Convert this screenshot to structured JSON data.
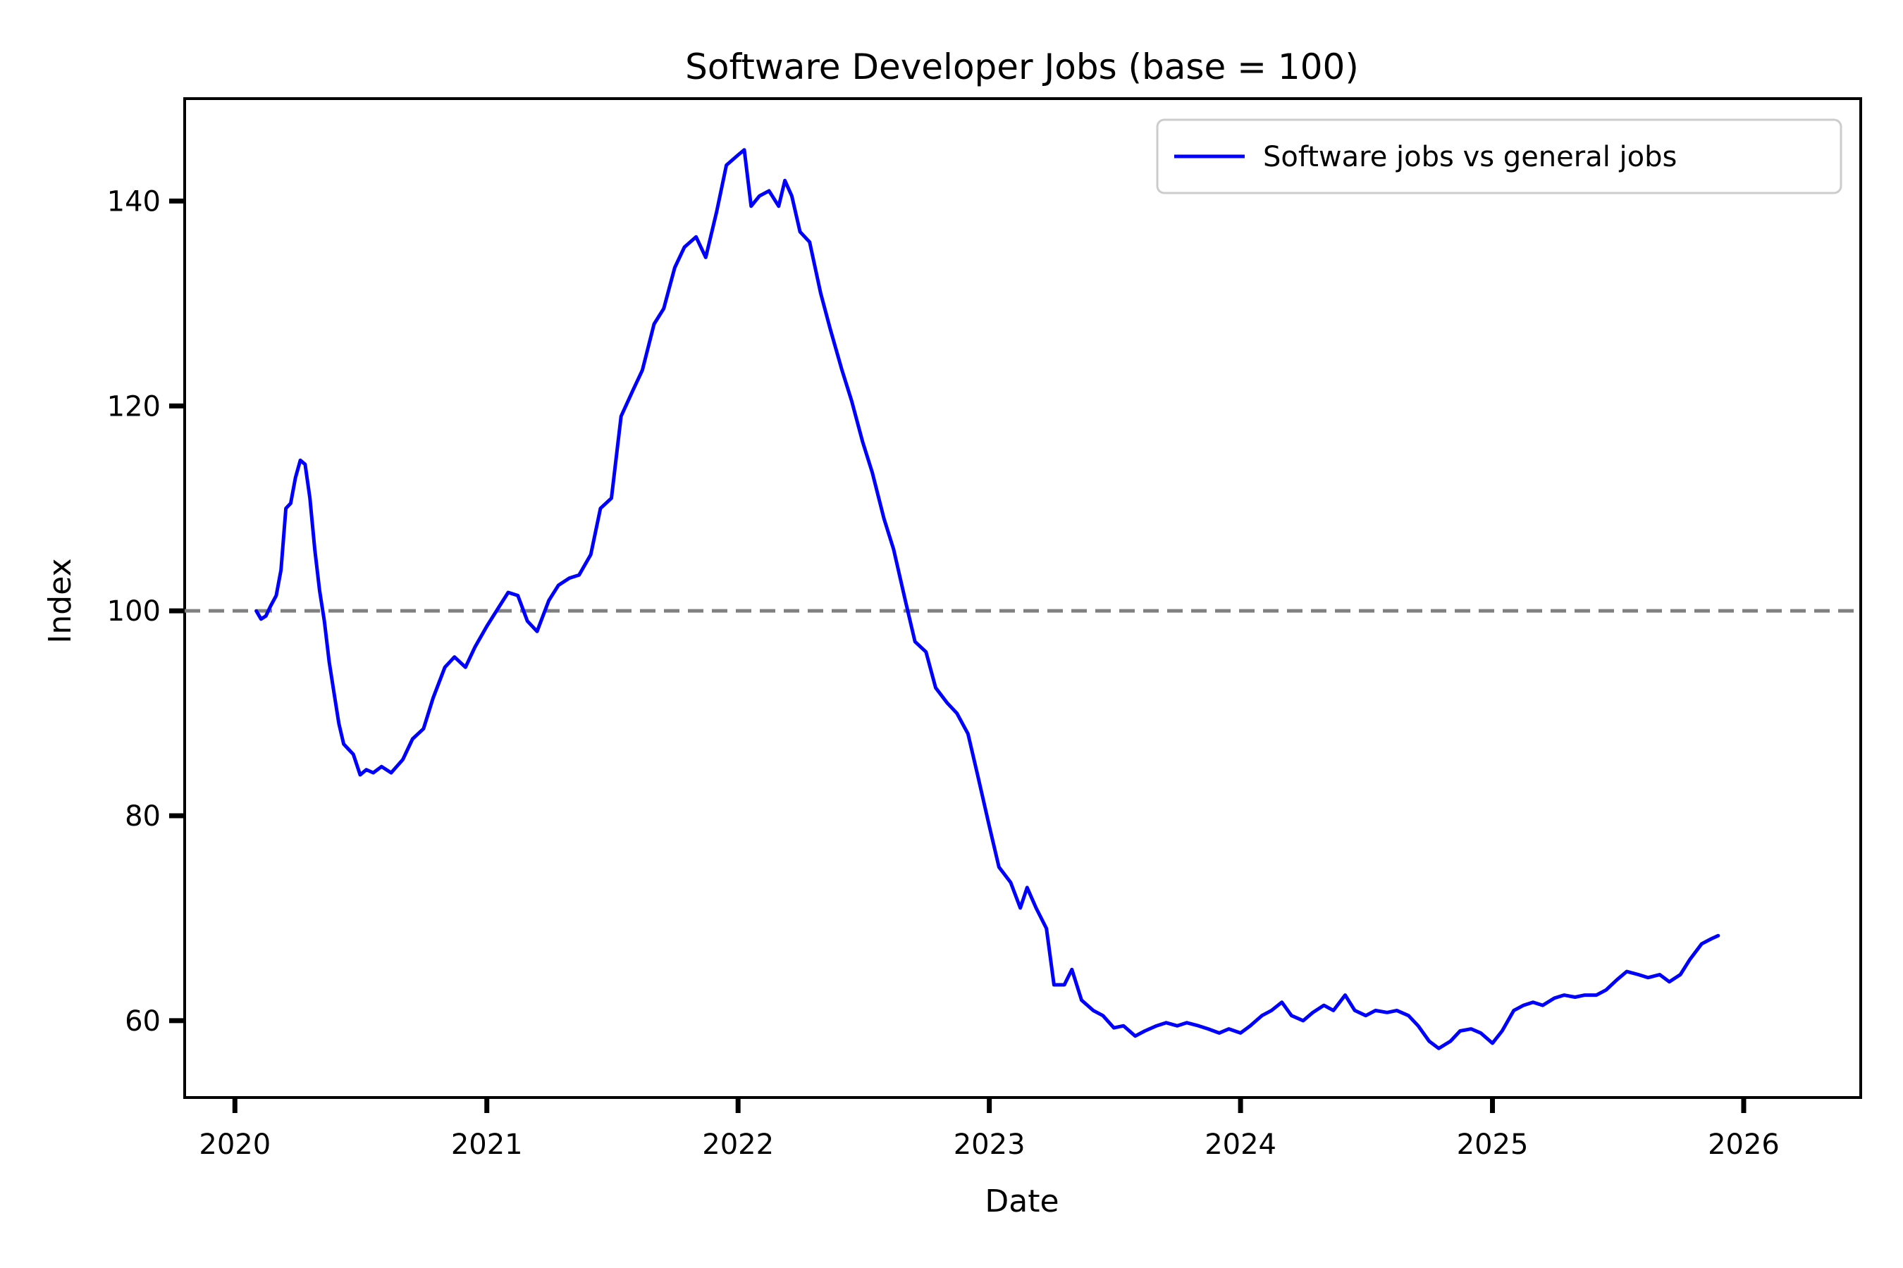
{
  "chart_data": {
    "type": "line",
    "title": "Software Developer Jobs (base = 100)",
    "xlabel": "Date",
    "ylabel": "Index",
    "xlim": [
      "2019-10-20",
      "2026-06-20"
    ],
    "ylim": [
      52.5,
      150
    ],
    "x_ticks": [
      {
        "date": "2020-01-01",
        "label": "2020"
      },
      {
        "date": "2021-01-01",
        "label": "2021"
      },
      {
        "date": "2022-01-01",
        "label": "2022"
      },
      {
        "date": "2023-01-01",
        "label": "2023"
      },
      {
        "date": "2024-01-01",
        "label": "2024"
      },
      {
        "date": "2025-01-01",
        "label": "2025"
      },
      {
        "date": "2026-01-01",
        "label": "2026"
      }
    ],
    "y_ticks": [
      60,
      80,
      100,
      120,
      140
    ],
    "grid": false,
    "legend": {
      "position": "top-right",
      "entries": [
        "Software jobs vs general jobs"
      ]
    },
    "reference_line": {
      "y": 100,
      "style": "dashed",
      "color": "#808080"
    },
    "series": [
      {
        "name": "Software jobs vs general jobs",
        "color": "#0000ff",
        "points": [
          [
            "2020-02-01",
            100.0
          ],
          [
            "2020-02-08",
            99.2
          ],
          [
            "2020-02-15",
            99.5
          ],
          [
            "2020-02-22",
            100.5
          ],
          [
            "2020-03-01",
            101.5
          ],
          [
            "2020-03-08",
            104.0
          ],
          [
            "2020-03-15",
            110.0
          ],
          [
            "2020-03-22",
            110.5
          ],
          [
            "2020-03-29",
            113.0
          ],
          [
            "2020-04-05",
            114.7
          ],
          [
            "2020-04-12",
            114.3
          ],
          [
            "2020-04-19",
            111.0
          ],
          [
            "2020-04-26",
            106.0
          ],
          [
            "2020-05-03",
            102.0
          ],
          [
            "2020-05-10",
            99.0
          ],
          [
            "2020-05-17",
            95.0
          ],
          [
            "2020-05-24",
            92.0
          ],
          [
            "2020-05-31",
            89.0
          ],
          [
            "2020-06-07",
            87.0
          ],
          [
            "2020-06-14",
            86.5
          ],
          [
            "2020-06-21",
            86.0
          ],
          [
            "2020-07-01",
            84.0
          ],
          [
            "2020-07-10",
            84.5
          ],
          [
            "2020-07-20",
            84.2
          ],
          [
            "2020-08-01",
            84.8
          ],
          [
            "2020-08-15",
            84.2
          ],
          [
            "2020-09-01",
            85.5
          ],
          [
            "2020-09-15",
            87.5
          ],
          [
            "2020-10-01",
            88.5
          ],
          [
            "2020-10-15",
            91.5
          ],
          [
            "2020-11-01",
            94.5
          ],
          [
            "2020-11-15",
            95.5
          ],
          [
            "2020-12-01",
            94.5
          ],
          [
            "2020-12-15",
            96.5
          ],
          [
            "2021-01-01",
            98.5
          ],
          [
            "2021-01-15",
            100.0
          ],
          [
            "2021-02-01",
            101.8
          ],
          [
            "2021-02-15",
            101.5
          ],
          [
            "2021-03-01",
            99.0
          ],
          [
            "2021-03-15",
            98.0
          ],
          [
            "2021-04-01",
            101.0
          ],
          [
            "2021-04-15",
            102.5
          ],
          [
            "2021-05-01",
            103.2
          ],
          [
            "2021-05-15",
            103.5
          ],
          [
            "2021-06-01",
            105.5
          ],
          [
            "2021-06-15",
            110.0
          ],
          [
            "2021-07-01",
            111.0
          ],
          [
            "2021-07-15",
            119.0
          ],
          [
            "2021-08-01",
            121.5
          ],
          [
            "2021-08-15",
            123.5
          ],
          [
            "2021-09-01",
            128.0
          ],
          [
            "2021-09-15",
            129.5
          ],
          [
            "2021-10-01",
            133.5
          ],
          [
            "2021-10-15",
            135.5
          ],
          [
            "2021-11-01",
            136.5
          ],
          [
            "2021-11-15",
            134.5
          ],
          [
            "2021-12-01",
            139.0
          ],
          [
            "2021-12-15",
            143.5
          ],
          [
            "2022-01-01",
            144.5
          ],
          [
            "2022-01-10",
            145.0
          ],
          [
            "2022-01-20",
            139.5
          ],
          [
            "2022-02-01",
            140.5
          ],
          [
            "2022-02-15",
            141.0
          ],
          [
            "2022-03-01",
            139.5
          ],
          [
            "2022-03-10",
            142.0
          ],
          [
            "2022-03-20",
            140.5
          ],
          [
            "2022-04-01",
            137.0
          ],
          [
            "2022-04-15",
            136.0
          ],
          [
            "2022-05-01",
            131.0
          ],
          [
            "2022-05-15",
            127.5
          ],
          [
            "2022-06-01",
            123.5
          ],
          [
            "2022-06-15",
            120.5
          ],
          [
            "2022-07-01",
            116.5
          ],
          [
            "2022-07-15",
            113.5
          ],
          [
            "2022-08-01",
            109.0
          ],
          [
            "2022-08-15",
            106.0
          ],
          [
            "2022-09-01",
            101.0
          ],
          [
            "2022-09-15",
            97.0
          ],
          [
            "2022-10-01",
            96.0
          ],
          [
            "2022-10-15",
            92.5
          ],
          [
            "2022-11-01",
            91.0
          ],
          [
            "2022-11-15",
            90.0
          ],
          [
            "2022-12-01",
            88.0
          ],
          [
            "2022-12-15",
            84.0
          ],
          [
            "2023-01-01",
            79.0
          ],
          [
            "2023-01-15",
            75.0
          ],
          [
            "2023-02-01",
            73.5
          ],
          [
            "2023-02-15",
            71.0
          ],
          [
            "2023-02-25",
            73.0
          ],
          [
            "2023-03-10",
            71.0
          ],
          [
            "2023-03-25",
            69.0
          ],
          [
            "2023-04-05",
            63.5
          ],
          [
            "2023-04-20",
            63.5
          ],
          [
            "2023-05-01",
            65.0
          ],
          [
            "2023-05-15",
            62.0
          ],
          [
            "2023-06-01",
            61.0
          ],
          [
            "2023-06-15",
            60.5
          ],
          [
            "2023-07-01",
            59.3
          ],
          [
            "2023-07-15",
            59.5
          ],
          [
            "2023-08-01",
            58.5
          ],
          [
            "2023-08-15",
            59.0
          ],
          [
            "2023-09-01",
            59.5
          ],
          [
            "2023-09-15",
            59.8
          ],
          [
            "2023-10-01",
            59.5
          ],
          [
            "2023-10-15",
            59.8
          ],
          [
            "2023-11-01",
            59.5
          ],
          [
            "2023-11-15",
            59.2
          ],
          [
            "2023-12-01",
            58.8
          ],
          [
            "2023-12-15",
            59.2
          ],
          [
            "2024-01-01",
            58.8
          ],
          [
            "2024-01-15",
            59.5
          ],
          [
            "2024-02-01",
            60.5
          ],
          [
            "2024-02-15",
            61.0
          ],
          [
            "2024-03-01",
            61.8
          ],
          [
            "2024-03-15",
            60.5
          ],
          [
            "2024-04-01",
            60.0
          ],
          [
            "2024-04-15",
            60.8
          ],
          [
            "2024-05-01",
            61.5
          ],
          [
            "2024-05-15",
            61.0
          ],
          [
            "2024-06-01",
            62.5
          ],
          [
            "2024-06-15",
            61.0
          ],
          [
            "2024-07-01",
            60.5
          ],
          [
            "2024-07-15",
            61.0
          ],
          [
            "2024-08-01",
            60.8
          ],
          [
            "2024-08-15",
            61.0
          ],
          [
            "2024-09-01",
            60.5
          ],
          [
            "2024-09-15",
            59.5
          ],
          [
            "2024-10-01",
            58.0
          ],
          [
            "2024-10-15",
            57.3
          ],
          [
            "2024-11-01",
            58.0
          ],
          [
            "2024-11-15",
            59.0
          ],
          [
            "2024-12-01",
            59.2
          ],
          [
            "2024-12-15",
            58.8
          ],
          [
            "2025-01-01",
            57.8
          ],
          [
            "2025-01-15",
            59.0
          ],
          [
            "2025-02-01",
            61.0
          ],
          [
            "2025-02-15",
            61.5
          ],
          [
            "2025-03-01",
            61.8
          ],
          [
            "2025-03-15",
            61.5
          ],
          [
            "2025-04-01",
            62.2
          ],
          [
            "2025-04-15",
            62.5
          ],
          [
            "2025-05-01",
            62.3
          ],
          [
            "2025-05-15",
            62.5
          ],
          [
            "2025-06-01",
            62.5
          ],
          [
            "2025-06-15",
            63.0
          ],
          [
            "2025-07-01",
            64.0
          ],
          [
            "2025-07-15",
            64.8
          ],
          [
            "2025-08-01",
            64.5
          ],
          [
            "2025-08-15",
            64.2
          ],
          [
            "2025-09-01",
            64.5
          ],
          [
            "2025-09-15",
            63.8
          ],
          [
            "2025-10-01",
            64.5
          ],
          [
            "2025-10-15",
            66.0
          ],
          [
            "2025-11-01",
            67.5
          ],
          [
            "2025-11-15",
            68.0
          ],
          [
            "2025-11-25",
            68.3
          ]
        ]
      }
    ]
  }
}
